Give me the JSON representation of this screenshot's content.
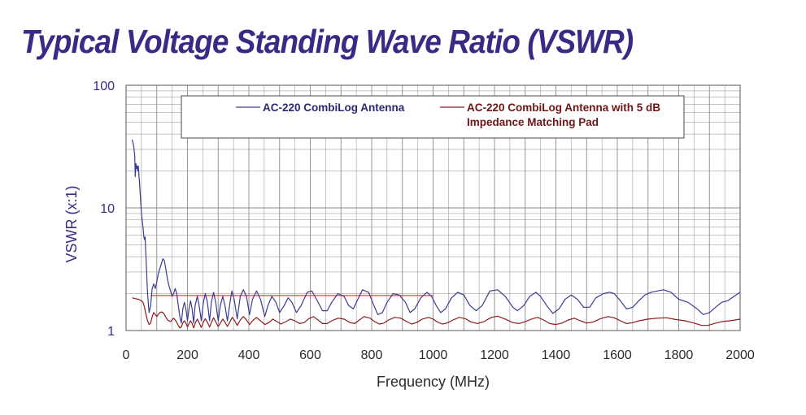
{
  "colors": {
    "title": "#3a2a86",
    "axis_text": "#2a2a2a",
    "ytick_text": "#3a2a86",
    "grid": "#8c8c8c",
    "series_1": "#3a3c92",
    "series_2": "#8b1c1c",
    "ref_line": "#e04040"
  },
  "chart_data": {
    "type": "line",
    "title": "Typical Voltage Standing Wave Ratio (VSWR)",
    "xlabel": "Frequency (MHz)",
    "ylabel": "VSWR (x:1)",
    "xlim": [
      0,
      2000
    ],
    "ylim": [
      1,
      100
    ],
    "yscale": "log",
    "grid": true,
    "legend_position": "top-center",
    "x_ticks": [
      "0",
      "200",
      "400",
      "600",
      "800",
      "1000",
      "1200",
      "1400",
      "1600",
      "1800",
      "2000"
    ],
    "y_ticks": [
      "1",
      "10",
      "100"
    ],
    "reference_line": {
      "y": 1.93,
      "x_start": 80,
      "x_end": 1000
    },
    "series": [
      {
        "name": "AC-220 CombiLog Antenna",
        "color": "#3a3c92",
        "points": [
          [
            20,
            36
          ],
          [
            25,
            32
          ],
          [
            28,
            27
          ],
          [
            30,
            18
          ],
          [
            32,
            23
          ],
          [
            34,
            21
          ],
          [
            36,
            22
          ],
          [
            38,
            20
          ],
          [
            40,
            22
          ],
          [
            42,
            18
          ],
          [
            44,
            16
          ],
          [
            46,
            13
          ],
          [
            48,
            11
          ],
          [
            50,
            9
          ],
          [
            55,
            7
          ],
          [
            58,
            5.8
          ],
          [
            60,
            5.5
          ],
          [
            62,
            5.8
          ],
          [
            65,
            4
          ],
          [
            70,
            2
          ],
          [
            75,
            1.4
          ],
          [
            80,
            1.6
          ],
          [
            85,
            2.2
          ],
          [
            90,
            2.4
          ],
          [
            95,
            2.2
          ],
          [
            100,
            2.5
          ],
          [
            105,
            2.9
          ],
          [
            110,
            3.2
          ],
          [
            115,
            3.5
          ],
          [
            120,
            3.85
          ],
          [
            125,
            3.7
          ],
          [
            130,
            3.1
          ],
          [
            135,
            2.6
          ],
          [
            140,
            2.3
          ],
          [
            145,
            2.1
          ],
          [
            150,
            1.9
          ],
          [
            155,
            2.0
          ],
          [
            160,
            2.2
          ],
          [
            165,
            2.0
          ],
          [
            170,
            1.6
          ],
          [
            175,
            1.3
          ],
          [
            180,
            1.15
          ],
          [
            185,
            1.5
          ],
          [
            190,
            1.7
          ],
          [
            195,
            1.5
          ],
          [
            200,
            1.2
          ],
          [
            205,
            1.5
          ],
          [
            210,
            1.75
          ],
          [
            215,
            1.5
          ],
          [
            220,
            1.15
          ],
          [
            225,
            1.6
          ],
          [
            232,
            1.9
          ],
          [
            238,
            1.6
          ],
          [
            245,
            1.2
          ],
          [
            252,
            1.7
          ],
          [
            258,
            2.0
          ],
          [
            265,
            1.7
          ],
          [
            272,
            1.2
          ],
          [
            278,
            1.7
          ],
          [
            285,
            2.05
          ],
          [
            292,
            1.7
          ],
          [
            300,
            1.2
          ],
          [
            307,
            1.6
          ],
          [
            315,
            1.9
          ],
          [
            322,
            1.6
          ],
          [
            330,
            1.2
          ],
          [
            340,
            1.8
          ],
          [
            345,
            2.1
          ],
          [
            352,
            1.8
          ],
          [
            362,
            1.25
          ],
          [
            372,
            1.9
          ],
          [
            382,
            2.15
          ],
          [
            392,
            1.9
          ],
          [
            402,
            1.35
          ],
          [
            412,
            1.8
          ],
          [
            425,
            2.1
          ],
          [
            438,
            1.8
          ],
          [
            452,
            1.3
          ],
          [
            462,
            1.6
          ],
          [
            475,
            1.9
          ],
          [
            488,
            1.7
          ],
          [
            500,
            1.4
          ],
          [
            515,
            1.6
          ],
          [
            528,
            1.85
          ],
          [
            540,
            1.7
          ],
          [
            555,
            1.4
          ],
          [
            570,
            1.6
          ],
          [
            590,
            2.05
          ],
          [
            605,
            2.1
          ],
          [
            620,
            1.8
          ],
          [
            640,
            1.45
          ],
          [
            655,
            1.45
          ],
          [
            670,
            1.7
          ],
          [
            690,
            2.0
          ],
          [
            710,
            1.9
          ],
          [
            725,
            1.6
          ],
          [
            740,
            1.5
          ],
          [
            755,
            1.8
          ],
          [
            770,
            2.15
          ],
          [
            790,
            2.05
          ],
          [
            805,
            1.65
          ],
          [
            820,
            1.35
          ],
          [
            835,
            1.4
          ],
          [
            850,
            1.7
          ],
          [
            870,
            2.0
          ],
          [
            890,
            1.95
          ],
          [
            910,
            1.7
          ],
          [
            925,
            1.4
          ],
          [
            940,
            1.5
          ],
          [
            960,
            1.85
          ],
          [
            980,
            2.05
          ],
          [
            995,
            1.9
          ],
          [
            1010,
            1.6
          ],
          [
            1025,
            1.4
          ],
          [
            1040,
            1.5
          ],
          [
            1060,
            1.85
          ],
          [
            1080,
            2.05
          ],
          [
            1100,
            1.95
          ],
          [
            1120,
            1.6
          ],
          [
            1140,
            1.45
          ],
          [
            1160,
            1.6
          ],
          [
            1185,
            2.1
          ],
          [
            1210,
            2.15
          ],
          [
            1235,
            1.9
          ],
          [
            1260,
            1.55
          ],
          [
            1275,
            1.45
          ],
          [
            1295,
            1.6
          ],
          [
            1315,
            1.9
          ],
          [
            1335,
            2.05
          ],
          [
            1350,
            1.9
          ],
          [
            1370,
            1.6
          ],
          [
            1390,
            1.38
          ],
          [
            1410,
            1.5
          ],
          [
            1430,
            1.8
          ],
          [
            1450,
            1.95
          ],
          [
            1470,
            1.8
          ],
          [
            1490,
            1.55
          ],
          [
            1510,
            1.55
          ],
          [
            1530,
            1.85
          ],
          [
            1555,
            2.0
          ],
          [
            1575,
            2.05
          ],
          [
            1590,
            2.0
          ],
          [
            1610,
            1.75
          ],
          [
            1630,
            1.5
          ],
          [
            1650,
            1.55
          ],
          [
            1670,
            1.75
          ],
          [
            1690,
            1.95
          ],
          [
            1710,
            2.05
          ],
          [
            1730,
            2.1
          ],
          [
            1750,
            2.15
          ],
          [
            1775,
            2.05
          ],
          [
            1800,
            1.8
          ],
          [
            1830,
            1.7
          ],
          [
            1860,
            1.5
          ],
          [
            1880,
            1.35
          ],
          [
            1900,
            1.4
          ],
          [
            1920,
            1.55
          ],
          [
            1940,
            1.7
          ],
          [
            1960,
            1.75
          ],
          [
            1980,
            1.9
          ],
          [
            2000,
            2.05
          ]
        ]
      },
      {
        "name": "AC-220 CombiLog Antenna with 5 dB Impedance Matching Pad",
        "color": "#8b1c1c",
        "points": [
          [
            20,
            1.85
          ],
          [
            30,
            1.82
          ],
          [
            40,
            1.8
          ],
          [
            50,
            1.75
          ],
          [
            55,
            1.7
          ],
          [
            60,
            1.55
          ],
          [
            65,
            1.35
          ],
          [
            70,
            1.2
          ],
          [
            75,
            1.12
          ],
          [
            80,
            1.15
          ],
          [
            85,
            1.3
          ],
          [
            90,
            1.4
          ],
          [
            95,
            1.35
          ],
          [
            100,
            1.3
          ],
          [
            105,
            1.35
          ],
          [
            110,
            1.4
          ],
          [
            115,
            1.42
          ],
          [
            120,
            1.4
          ],
          [
            125,
            1.35
          ],
          [
            130,
            1.28
          ],
          [
            135,
            1.22
          ],
          [
            140,
            1.2
          ],
          [
            145,
            1.18
          ],
          [
            150,
            1.22
          ],
          [
            155,
            1.26
          ],
          [
            160,
            1.22
          ],
          [
            165,
            1.17
          ],
          [
            170,
            1.1
          ],
          [
            175,
            1.05
          ],
          [
            180,
            1.07
          ],
          [
            185,
            1.15
          ],
          [
            190,
            1.2
          ],
          [
            195,
            1.15
          ],
          [
            200,
            1.07
          ],
          [
            205,
            1.14
          ],
          [
            210,
            1.2
          ],
          [
            215,
            1.14
          ],
          [
            220,
            1.05
          ],
          [
            226,
            1.16
          ],
          [
            232,
            1.24
          ],
          [
            238,
            1.16
          ],
          [
            245,
            1.06
          ],
          [
            252,
            1.17
          ],
          [
            258,
            1.25
          ],
          [
            265,
            1.17
          ],
          [
            272,
            1.07
          ],
          [
            279,
            1.18
          ],
          [
            285,
            1.27
          ],
          [
            292,
            1.18
          ],
          [
            300,
            1.08
          ],
          [
            308,
            1.16
          ],
          [
            315,
            1.24
          ],
          [
            322,
            1.17
          ],
          [
            330,
            1.08
          ],
          [
            340,
            1.2
          ],
          [
            346,
            1.28
          ],
          [
            354,
            1.2
          ],
          [
            362,
            1.1
          ],
          [
            372,
            1.22
          ],
          [
            382,
            1.3
          ],
          [
            392,
            1.22
          ],
          [
            402,
            1.12
          ],
          [
            412,
            1.2
          ],
          [
            425,
            1.28
          ],
          [
            438,
            1.2
          ],
          [
            452,
            1.12
          ],
          [
            465,
            1.16
          ],
          [
            478,
            1.24
          ],
          [
            492,
            1.18
          ],
          [
            505,
            1.13
          ],
          [
            520,
            1.18
          ],
          [
            535,
            1.24
          ],
          [
            550,
            1.2
          ],
          [
            565,
            1.14
          ],
          [
            580,
            1.16
          ],
          [
            595,
            1.25
          ],
          [
            610,
            1.3
          ],
          [
            625,
            1.22
          ],
          [
            640,
            1.14
          ],
          [
            655,
            1.14
          ],
          [
            670,
            1.2
          ],
          [
            690,
            1.26
          ],
          [
            710,
            1.24
          ],
          [
            730,
            1.16
          ],
          [
            745,
            1.14
          ],
          [
            760,
            1.22
          ],
          [
            775,
            1.3
          ],
          [
            795,
            1.26
          ],
          [
            810,
            1.18
          ],
          [
            825,
            1.13
          ],
          [
            840,
            1.15
          ],
          [
            855,
            1.22
          ],
          [
            875,
            1.28
          ],
          [
            895,
            1.26
          ],
          [
            915,
            1.18
          ],
          [
            930,
            1.13
          ],
          [
            945,
            1.16
          ],
          [
            965,
            1.24
          ],
          [
            985,
            1.28
          ],
          [
            1000,
            1.24
          ],
          [
            1015,
            1.17
          ],
          [
            1030,
            1.13
          ],
          [
            1045,
            1.15
          ],
          [
            1065,
            1.22
          ],
          [
            1085,
            1.28
          ],
          [
            1105,
            1.25
          ],
          [
            1125,
            1.17
          ],
          [
            1145,
            1.14
          ],
          [
            1165,
            1.18
          ],
          [
            1190,
            1.28
          ],
          [
            1210,
            1.31
          ],
          [
            1235,
            1.24
          ],
          [
            1260,
            1.16
          ],
          [
            1280,
            1.14
          ],
          [
            1300,
            1.18
          ],
          [
            1320,
            1.24
          ],
          [
            1340,
            1.28
          ],
          [
            1360,
            1.22
          ],
          [
            1380,
            1.14
          ],
          [
            1400,
            1.12
          ],
          [
            1420,
            1.15
          ],
          [
            1440,
            1.22
          ],
          [
            1460,
            1.26
          ],
          [
            1480,
            1.2
          ],
          [
            1500,
            1.15
          ],
          [
            1520,
            1.17
          ],
          [
            1545,
            1.25
          ],
          [
            1570,
            1.3
          ],
          [
            1590,
            1.27
          ],
          [
            1610,
            1.2
          ],
          [
            1630,
            1.14
          ],
          [
            1650,
            1.16
          ],
          [
            1670,
            1.2
          ],
          [
            1700,
            1.24
          ],
          [
            1730,
            1.26
          ],
          [
            1760,
            1.27
          ],
          [
            1790,
            1.23
          ],
          [
            1820,
            1.2
          ],
          [
            1850,
            1.15
          ],
          [
            1875,
            1.1
          ],
          [
            1895,
            1.1
          ],
          [
            1915,
            1.14
          ],
          [
            1940,
            1.18
          ],
          [
            1965,
            1.2
          ],
          [
            1985,
            1.22
          ],
          [
            2000,
            1.24
          ]
        ]
      }
    ]
  }
}
